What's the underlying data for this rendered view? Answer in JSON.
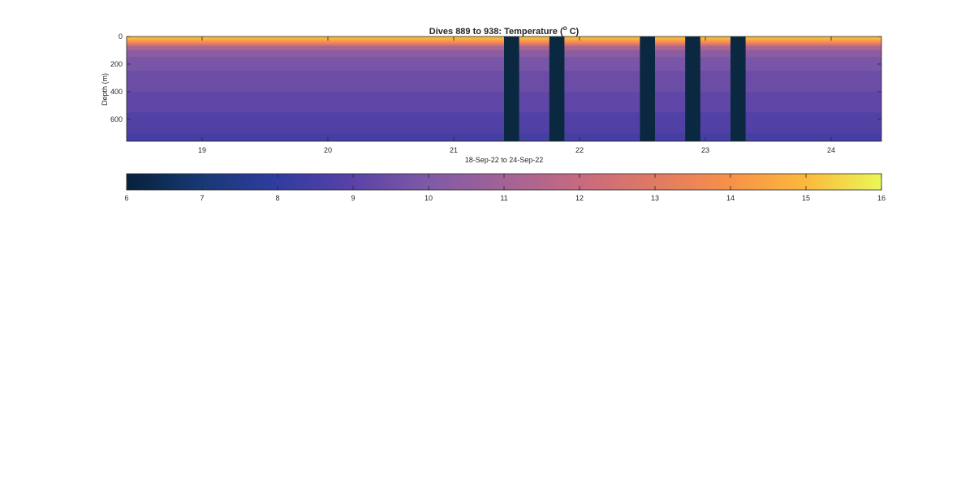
{
  "chart_data": {
    "type": "heatmap",
    "title_main": "Dives 889 to 938: Temperature (",
    "title_sup": "o",
    "title_end": " C)",
    "xlabel": "18-Sep-22 to 24-Sep-22",
    "ylabel": "Depth (m)",
    "xlim": [
      18.4,
      24.4
    ],
    "ylim": [
      0,
      760
    ],
    "y_reversed": true,
    "x_ticks": [
      19,
      20,
      21,
      22,
      23,
      24
    ],
    "y_ticks": [
      0,
      200,
      400,
      600
    ],
    "gap_intervals": [
      [
        21.4,
        21.52
      ],
      [
        21.76,
        21.88
      ],
      [
        22.48,
        22.6
      ],
      [
        22.84,
        22.96
      ],
      [
        23.2,
        23.32
      ]
    ],
    "gap_color": "#0a2840",
    "profile": {
      "depth": [
        0,
        10,
        25,
        40,
        55,
        70,
        100,
        150,
        250,
        400,
        550,
        700,
        760
      ],
      "temperature": [
        15.2,
        15.0,
        14.6,
        13.9,
        13.0,
        11.8,
        10.6,
        10.0,
        9.6,
        9.3,
        9.0,
        8.6,
        8.4
      ]
    },
    "colorbar": {
      "min": 6,
      "max": 16,
      "ticks": [
        6,
        7,
        8,
        9,
        10,
        11,
        12,
        13,
        14,
        15,
        16
      ],
      "colors": [
        "#06213a",
        "#173a75",
        "#303ca0",
        "#5a42a6",
        "#7f5aa6",
        "#a36296",
        "#c66a80",
        "#e07a62",
        "#f7914a",
        "#fbb93c",
        "#eaf759"
      ]
    }
  }
}
